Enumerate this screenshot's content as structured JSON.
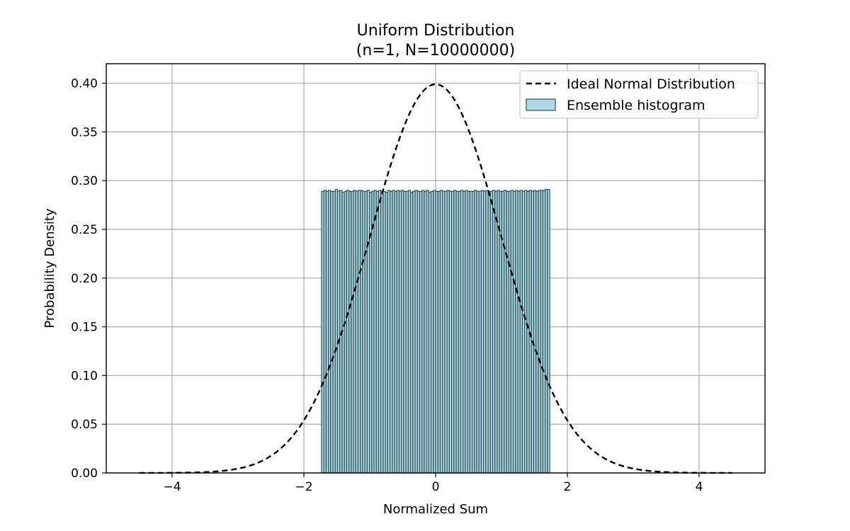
{
  "chart_data": {
    "type": "bar",
    "title": "Uniform Distribution",
    "subtitle": "(n=1, N=10000000)",
    "xlabel": "Normalized Sum",
    "ylabel": "Probability Density",
    "xlim": [
      -5,
      5
    ],
    "ylim": [
      0,
      0.42
    ],
    "x_ticks": [
      -4,
      -2,
      0,
      2,
      4
    ],
    "x_tick_labels": [
      "−4",
      "−2",
      "0",
      "2",
      "4"
    ],
    "y_ticks": [
      0.0,
      0.05,
      0.1,
      0.15,
      0.2,
      0.25,
      0.3,
      0.35,
      0.4
    ],
    "y_tick_labels": [
      "0.00",
      "0.05",
      "0.10",
      "0.15",
      "0.20",
      "0.25",
      "0.30",
      "0.35",
      "0.40"
    ],
    "grid": true,
    "legend_position": "top-right",
    "histogram": {
      "name": "Ensemble histogram",
      "bin_range": [
        -1.732,
        1.732
      ],
      "bin_count": 100,
      "densities": [
        0.289,
        0.29,
        0.289,
        0.29,
        0.289,
        0.289,
        0.291,
        0.289,
        0.29,
        0.288,
        0.289,
        0.29,
        0.289,
        0.289,
        0.29,
        0.289,
        0.29,
        0.29,
        0.289,
        0.289,
        0.29,
        0.288,
        0.289,
        0.29,
        0.289,
        0.29,
        0.289,
        0.289,
        0.288,
        0.29,
        0.289,
        0.29,
        0.289,
        0.29,
        0.289,
        0.29,
        0.289,
        0.289,
        0.29,
        0.288,
        0.289,
        0.29,
        0.289,
        0.289,
        0.29,
        0.289,
        0.29,
        0.288,
        0.289,
        0.29,
        0.289,
        0.289,
        0.29,
        0.289,
        0.289,
        0.29,
        0.289,
        0.289,
        0.29,
        0.289,
        0.289,
        0.29,
        0.289,
        0.29,
        0.289,
        0.289,
        0.289,
        0.29,
        0.289,
        0.289,
        0.29,
        0.289,
        0.29,
        0.289,
        0.289,
        0.29,
        0.289,
        0.29,
        0.289,
        0.289,
        0.29,
        0.289,
        0.289,
        0.29,
        0.289,
        0.29,
        0.289,
        0.29,
        0.289,
        0.29,
        0.289,
        0.29,
        0.289,
        0.29,
        0.289,
        0.29,
        0.29,
        0.29,
        0.291,
        0.291
      ],
      "fill_color": "#add8e6",
      "edge_color": "#2f4f4f"
    },
    "pdf_curve": {
      "name": "Ideal Normal Distribution",
      "x_range": [
        -4.5,
        4.5
      ],
      "mean": 0,
      "std": 1,
      "peak": 0.399,
      "color": "#000000",
      "style": "dashed"
    },
    "legend": [
      {
        "label": "Ideal Normal Distribution",
        "style": "dashed-line"
      },
      {
        "label": "Ensemble histogram",
        "style": "filled-box"
      }
    ]
  }
}
